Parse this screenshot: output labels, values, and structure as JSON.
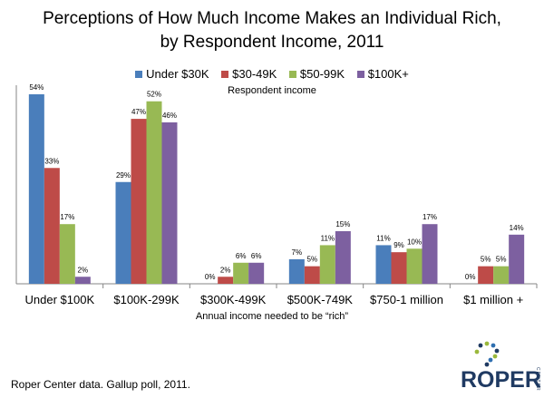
{
  "title_line1": "Perceptions of How Much Income Makes an Individual Rich,",
  "title_line2": "by Respondent Income, 2011",
  "legend_subtitle": "Respondent  income",
  "source": "Roper Center data. Gallup poll, 2011.",
  "logo": {
    "word": "ROPER",
    "side_text": "CENTER"
  },
  "chart_data": {
    "type": "bar",
    "title": "Perceptions of How Much Income Makes an Individual Rich, by Respondent Income, 2011",
    "xlabel": "Annual income needed to be “rich”",
    "ylabel": "",
    "ylim": [
      0,
      54
    ],
    "grid": false,
    "legend_position": "top",
    "categories": [
      "Under $100K",
      "$100K-299K",
      "$300K-499K",
      "$500K-749K",
      "$750-1 million",
      "$1 million +"
    ],
    "series": [
      {
        "name": "Under $30K",
        "color": "#4a7ebb",
        "values": [
          54,
          29,
          0,
          7,
          11,
          0
        ]
      },
      {
        "name": "$30-49K",
        "color": "#be4b48",
        "values": [
          33,
          47,
          2,
          5,
          9,
          5
        ]
      },
      {
        "name": "$50-99K",
        "color": "#98b954",
        "values": [
          17,
          52,
          6,
          11,
          10,
          5
        ]
      },
      {
        "name": "$100K+",
        "color": "#7d60a0",
        "values": [
          2,
          46,
          6,
          15,
          17,
          14
        ]
      }
    ]
  }
}
